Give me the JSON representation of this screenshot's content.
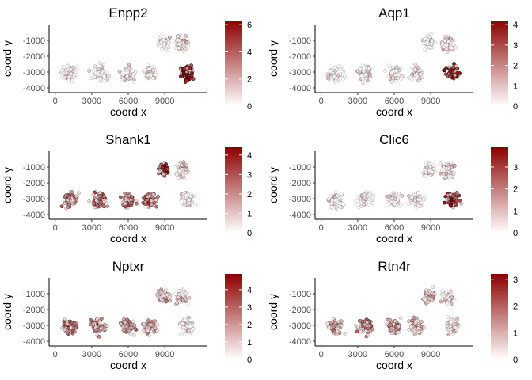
{
  "chart_data": [
    {
      "type": "scatter",
      "title": "Enpp2",
      "xlabel": "coord x",
      "ylabel": "coord y",
      "xlim": [
        -500,
        12500
      ],
      "ylim": [
        -4300,
        0
      ],
      "xticks": [
        0,
        3000,
        6000,
        9000
      ],
      "yticks": [
        -1000,
        -2000,
        -3000,
        -4000
      ],
      "colorbar": {
        "min": 0,
        "max": 6.3,
        "ticks": [
          0,
          2,
          4,
          6
        ],
        "low_color": "#ffffff",
        "high_color": "#8b0000"
      },
      "region_levels": [
        0.05,
        0.05,
        0.05,
        0.05,
        0.06,
        0.15,
        0.9
      ],
      "grid": false,
      "legend": "right"
    },
    {
      "type": "scatter",
      "title": "Aqp1",
      "xlabel": "coord x",
      "ylabel": "coord y",
      "xlim": [
        -500,
        12500
      ],
      "ylim": [
        -4300,
        0
      ],
      "xticks": [
        0,
        3000,
        6000,
        9000
      ],
      "yticks": [
        -1000,
        -2000,
        -3000,
        -4000
      ],
      "colorbar": {
        "min": 0,
        "max": 4.2,
        "ticks": [
          0,
          1,
          2,
          3,
          4
        ],
        "low_color": "#ffffff",
        "high_color": "#8b0000"
      },
      "region_levels": [
        0.05,
        0.05,
        0.05,
        0.05,
        0.05,
        0.12,
        0.9
      ],
      "grid": false,
      "legend": "right"
    },
    {
      "type": "scatter",
      "title": "Shank1",
      "xlabel": "coord x",
      "ylabel": "coord y",
      "xlim": [
        -500,
        12500
      ],
      "ylim": [
        -4300,
        0
      ],
      "xticks": [
        0,
        3000,
        6000,
        9000
      ],
      "yticks": [
        -1000,
        -2000,
        -3000,
        -4000
      ],
      "colorbar": {
        "min": 0,
        "max": 4.4,
        "ticks": [
          0,
          1,
          2,
          3,
          4
        ],
        "low_color": "#ffffff",
        "high_color": "#8b0000"
      },
      "region_levels": [
        0.55,
        0.6,
        0.55,
        0.6,
        0.75,
        0.2,
        0.05
      ],
      "grid": false,
      "legend": "right"
    },
    {
      "type": "scatter",
      "title": "Clic6",
      "xlabel": "coord x",
      "ylabel": "coord y",
      "xlim": [
        -500,
        12500
      ],
      "ylim": [
        -4300,
        0
      ],
      "xticks": [
        0,
        3000,
        6000,
        9000
      ],
      "yticks": [
        -1000,
        -2000,
        -3000,
        -4000
      ],
      "colorbar": {
        "min": 0,
        "max": 3.9,
        "ticks": [
          0,
          1,
          2,
          3
        ],
        "low_color": "#ffffff",
        "high_color": "#8b0000"
      },
      "region_levels": [
        0.05,
        0.05,
        0.05,
        0.05,
        0.05,
        0.15,
        0.85
      ],
      "grid": false,
      "legend": "right"
    },
    {
      "type": "scatter",
      "title": "Nptxr",
      "xlabel": "coord x",
      "ylabel": "coord y",
      "xlim": [
        -500,
        12500
      ],
      "ylim": [
        -4300,
        0
      ],
      "xticks": [
        0,
        3000,
        6000,
        9000
      ],
      "yticks": [
        -1000,
        -2000,
        -3000,
        -4000
      ],
      "colorbar": {
        "min": 0,
        "max": 4.9,
        "ticks": [
          0,
          1,
          2,
          3,
          4
        ],
        "low_color": "#ffffff",
        "high_color": "#8b0000"
      },
      "region_levels": [
        0.45,
        0.5,
        0.4,
        0.35,
        0.3,
        0.15,
        0.05
      ],
      "grid": false,
      "legend": "right"
    },
    {
      "type": "scatter",
      "title": "Rtn4r",
      "xlabel": "coord x",
      "ylabel": "coord y",
      "xlim": [
        -500,
        12500
      ],
      "ylim": [
        -4300,
        0
      ],
      "xticks": [
        0,
        3000,
        6000,
        9000
      ],
      "yticks": [
        -1000,
        -2000,
        -3000,
        -4000
      ],
      "colorbar": {
        "min": 0,
        "max": 3.2,
        "ticks": [
          0,
          1,
          2,
          3
        ],
        "low_color": "#ffffff",
        "high_color": "#8b0000"
      },
      "region_levels": [
        0.45,
        0.45,
        0.4,
        0.35,
        0.3,
        0.15,
        0.1
      ],
      "grid": false,
      "legend": "right"
    }
  ]
}
